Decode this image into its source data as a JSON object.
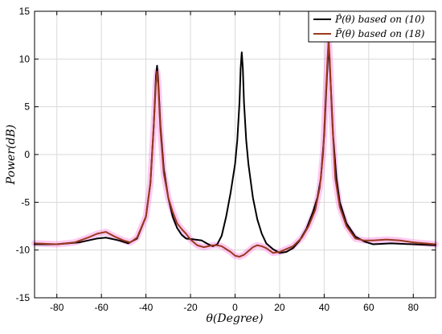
{
  "chart_data": {
    "type": "line",
    "xlabel": "θ(Degree)",
    "ylabel": "Power(dB)",
    "xlim": [
      -90,
      90
    ],
    "ylim": [
      -15,
      15
    ],
    "x_ticks": [
      -80,
      -60,
      -40,
      -20,
      0,
      20,
      40,
      60,
      80
    ],
    "y_ticks": [
      -15,
      -10,
      -5,
      0,
      5,
      10,
      15
    ],
    "x_tick_labels": [
      "-80",
      "-60",
      "-40",
      "-20",
      "0",
      "20",
      "40",
      "60",
      "80"
    ],
    "y_tick_labels": [
      "-15",
      "-10",
      "-5",
      "0",
      "5",
      "10",
      "15"
    ],
    "grid": true,
    "legend_position": "top-right",
    "series": [
      {
        "name": "P̂(θ) based on (10)",
        "color": "#000000",
        "points": [
          [
            -90,
            -9.4
          ],
          [
            -80,
            -9.4
          ],
          [
            -70,
            -9.2
          ],
          [
            -62,
            -8.8
          ],
          [
            -58,
            -8.7
          ],
          [
            -52,
            -9.0
          ],
          [
            -48,
            -9.3
          ],
          [
            -44,
            -8.8
          ],
          [
            -40,
            -6.5
          ],
          [
            -38,
            -3.0
          ],
          [
            -36.5,
            3.0
          ],
          [
            -35.5,
            8.2
          ],
          [
            -35,
            9.3
          ],
          [
            -34.5,
            7.8
          ],
          [
            -33.5,
            3.0
          ],
          [
            -32,
            -1.5
          ],
          [
            -30,
            -4.5
          ],
          [
            -28,
            -6.5
          ],
          [
            -26,
            -7.7
          ],
          [
            -24,
            -8.4
          ],
          [
            -22,
            -8.8
          ],
          [
            -18,
            -8.9
          ],
          [
            -15,
            -9.0
          ],
          [
            -12,
            -9.4
          ],
          [
            -10,
            -9.6
          ],
          [
            -8,
            -9.4
          ],
          [
            -6,
            -8.5
          ],
          [
            -4,
            -6.5
          ],
          [
            -2,
            -4.0
          ],
          [
            0,
            -1.0
          ],
          [
            1,
            1.5
          ],
          [
            2,
            5.5
          ],
          [
            2.5,
            9.0
          ],
          [
            3,
            10.7
          ],
          [
            3.5,
            9.0
          ],
          [
            4,
            5.5
          ],
          [
            5,
            1.5
          ],
          [
            6,
            -1.0
          ],
          [
            8,
            -4.5
          ],
          [
            10,
            -6.8
          ],
          [
            12,
            -8.3
          ],
          [
            14,
            -9.3
          ],
          [
            17,
            -9.9
          ],
          [
            20,
            -10.3
          ],
          [
            23,
            -10.2
          ],
          [
            26,
            -9.8
          ],
          [
            29,
            -9.0
          ],
          [
            32,
            -7.8
          ],
          [
            35,
            -6.0
          ],
          [
            37,
            -4.5
          ],
          [
            38.5,
            -2.5
          ],
          [
            40,
            2.0
          ],
          [
            41,
            7.0
          ],
          [
            42,
            11.8
          ],
          [
            43,
            7.0
          ],
          [
            44,
            2.0
          ],
          [
            45.5,
            -2.5
          ],
          [
            47,
            -5.0
          ],
          [
            50,
            -7.2
          ],
          [
            54,
            -8.6
          ],
          [
            58,
            -9.1
          ],
          [
            62,
            -9.4
          ],
          [
            70,
            -9.3
          ],
          [
            80,
            -9.4
          ],
          [
            90,
            -9.5
          ]
        ]
      },
      {
        "name": "P̃(θ) based on (18)",
        "color": "#9a3a1f",
        "points": [
          [
            -90,
            -9.3
          ],
          [
            -80,
            -9.4
          ],
          [
            -72,
            -9.2
          ],
          [
            -66,
            -8.7
          ],
          [
            -62,
            -8.3
          ],
          [
            -58,
            -8.1
          ],
          [
            -54,
            -8.6
          ],
          [
            -50,
            -9.0
          ],
          [
            -47,
            -9.2
          ],
          [
            -44,
            -8.7
          ],
          [
            -40,
            -6.5
          ],
          [
            -38,
            -3.0
          ],
          [
            -36.5,
            3.0
          ],
          [
            -35.5,
            7.5
          ],
          [
            -35,
            8.7
          ],
          [
            -34.5,
            7.3
          ],
          [
            -33.5,
            2.5
          ],
          [
            -32,
            -2.0
          ],
          [
            -30,
            -4.5
          ],
          [
            -28,
            -6.0
          ],
          [
            -26,
            -7.2
          ],
          [
            -24,
            -7.8
          ],
          [
            -22,
            -8.3
          ],
          [
            -20,
            -8.9
          ],
          [
            -17,
            -9.5
          ],
          [
            -14,
            -9.7
          ],
          [
            -10,
            -9.5
          ],
          [
            -8,
            -9.5
          ],
          [
            -6,
            -9.6
          ],
          [
            -4,
            -9.9
          ],
          [
            -2,
            -10.2
          ],
          [
            0,
            -10.6
          ],
          [
            2,
            -10.7
          ],
          [
            4,
            -10.5
          ],
          [
            6,
            -10.1
          ],
          [
            8,
            -9.7
          ],
          [
            10,
            -9.5
          ],
          [
            12,
            -9.6
          ],
          [
            14,
            -9.8
          ],
          [
            17,
            -10.3
          ],
          [
            20,
            -10.2
          ],
          [
            23,
            -9.9
          ],
          [
            26,
            -9.6
          ],
          [
            30,
            -8.7
          ],
          [
            33,
            -7.5
          ],
          [
            36,
            -5.8
          ],
          [
            38,
            -3.5
          ],
          [
            39.5,
            0.0
          ],
          [
            40.5,
            5.0
          ],
          [
            41.5,
            10.0
          ],
          [
            42,
            12.0
          ],
          [
            42.5,
            10.0
          ],
          [
            43.5,
            4.0
          ],
          [
            45,
            -2.5
          ],
          [
            47,
            -5.5
          ],
          [
            50,
            -7.5
          ],
          [
            54,
            -8.8
          ],
          [
            58,
            -9.0
          ],
          [
            62,
            -9.0
          ],
          [
            68,
            -8.9
          ],
          [
            74,
            -9.0
          ],
          [
            80,
            -9.2
          ],
          [
            90,
            -9.4
          ]
        ]
      }
    ]
  }
}
